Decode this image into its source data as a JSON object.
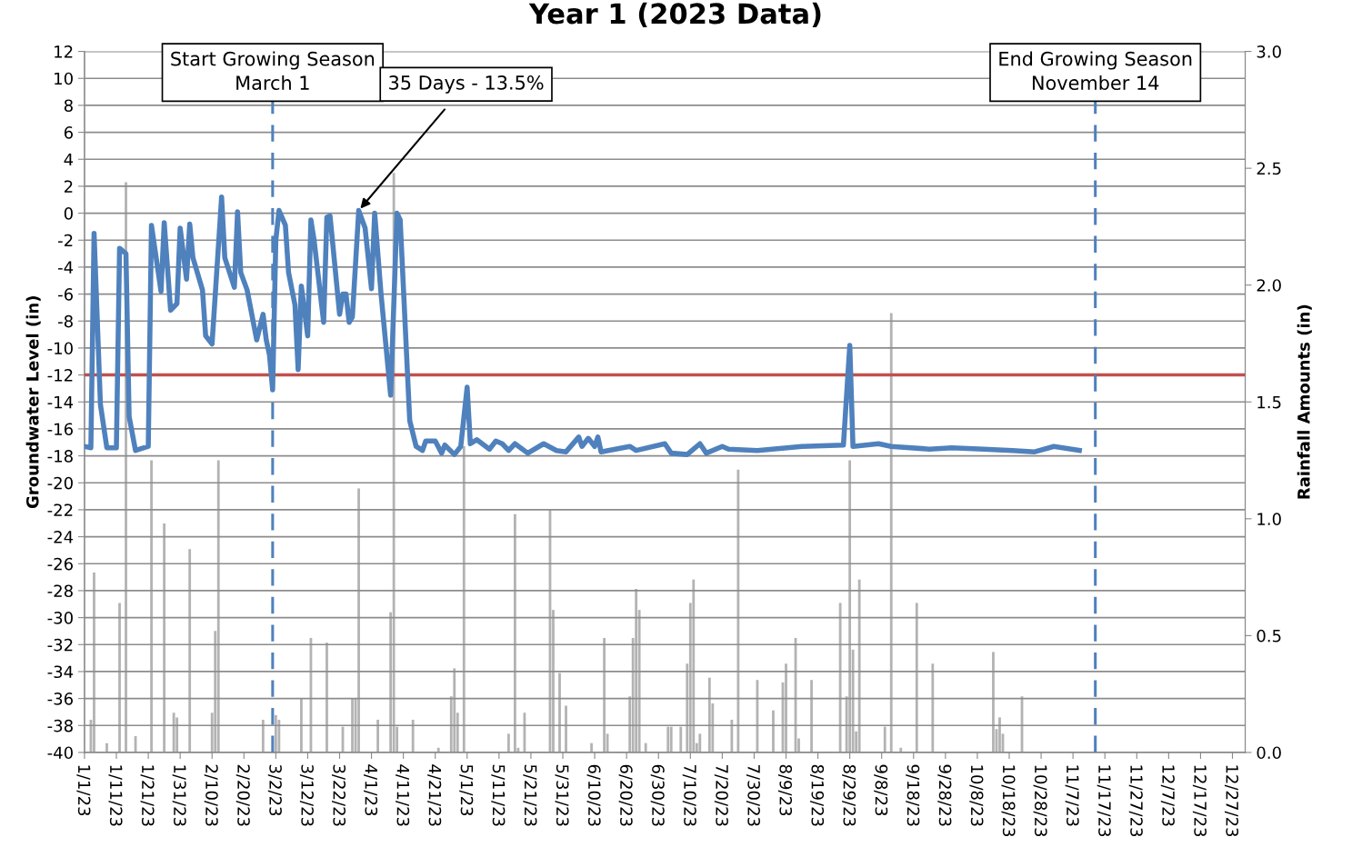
{
  "chart_data": {
    "type": "line",
    "title": "Year 1 (2023 Data)",
    "ylabel": "Groundwater Level (in)",
    "y2label": "Rainfall Amounts (in)",
    "series": [
      {
        "type": "bar",
        "axis": "y2",
        "color": "#b3b3b3",
        "x": [
          "2023-01-03",
          "2023-01-04",
          "2023-01-08",
          "2023-01-12",
          "2023-01-14",
          "2023-01-17",
          "2023-01-22",
          "2023-01-26",
          "2023-01-29",
          "2023-01-30",
          "2023-02-03",
          "2023-02-10",
          "2023-02-11",
          "2023-02-12",
          "2023-02-26",
          "2023-03-02",
          "2023-03-03",
          "2023-03-10",
          "2023-03-13",
          "2023-03-18",
          "2023-03-23",
          "2023-03-26",
          "2023-03-27",
          "2023-03-28",
          "2023-04-03",
          "2023-04-07",
          "2023-04-08",
          "2023-04-09",
          "2023-04-14",
          "2023-04-22",
          "2023-04-26",
          "2023-04-27",
          "2023-04-28",
          "2023-04-30",
          "2023-05-14",
          "2023-05-16",
          "2023-05-17",
          "2023-05-19",
          "2023-05-27",
          "2023-05-28",
          "2023-05-30",
          "2023-06-01",
          "2023-06-09",
          "2023-06-13",
          "2023-06-14",
          "2023-06-21",
          "2023-06-22",
          "2023-06-23",
          "2023-06-24",
          "2023-06-26",
          "2023-07-03",
          "2023-07-04",
          "2023-07-07",
          "2023-07-09",
          "2023-07-10",
          "2023-07-11",
          "2023-07-12",
          "2023-07-13",
          "2023-07-16",
          "2023-07-17",
          "2023-07-23",
          "2023-07-25",
          "2023-07-31",
          "2023-08-05",
          "2023-08-08",
          "2023-08-09",
          "2023-08-12",
          "2023-08-13",
          "2023-08-17",
          "2023-08-26",
          "2023-08-28",
          "2023-08-29",
          "2023-08-30",
          "2023-08-31",
          "2023-09-01",
          "2023-09-09",
          "2023-09-11",
          "2023-09-14",
          "2023-09-19",
          "2023-09-24",
          "2023-10-13",
          "2023-10-14",
          "2023-10-15",
          "2023-10-16",
          "2023-10-22"
        ],
        "values": [
          0.14,
          0.77,
          0.04,
          0.64,
          2.44,
          0.07,
          1.25,
          0.98,
          0.17,
          0.15,
          0.87,
          0.17,
          0.52,
          1.25,
          0.14,
          0.16,
          0.14,
          0.23,
          0.49,
          0.47,
          0.11,
          0.23,
          0.23,
          1.13,
          0.14,
          0.6,
          2.48,
          0.11,
          0.14,
          0.02,
          0.24,
          0.36,
          0.17,
          1.31,
          0.08,
          1.02,
          0.02,
          0.17,
          1.04,
          0.61,
          0.34,
          0.2,
          0.04,
          0.49,
          0.08,
          0.24,
          0.49,
          0.7,
          0.61,
          0.04,
          0.11,
          0.11,
          0.11,
          0.38,
          0.64,
          0.74,
          0.04,
          0.08,
          0.32,
          0.21,
          0.14,
          1.21,
          0.31,
          0.18,
          0.3,
          0.38,
          0.49,
          0.06,
          0.31,
          0.64,
          0.24,
          1.25,
          0.44,
          0.09,
          0.74,
          0.11,
          1.88,
          0.02,
          0.64,
          0.38,
          0.43,
          0.1,
          0.15,
          0.08,
          0.24
        ]
      },
      {
        "color": "#4f81bd",
        "x": [
          "2023-01-01",
          "2023-01-03",
          "2023-01-04",
          "2023-01-06",
          "2023-01-08",
          "2023-01-11",
          "2023-01-12",
          "2023-01-14",
          "2023-01-15",
          "2023-01-17",
          "2023-01-21",
          "2023-01-22",
          "2023-01-25",
          "2023-01-26",
          "2023-01-28",
          "2023-01-30",
          "2023-01-31",
          "2023-02-02",
          "2023-02-03",
          "2023-02-04",
          "2023-02-07",
          "2023-02-08",
          "2023-02-10",
          "2023-02-13",
          "2023-02-14",
          "2023-02-17",
          "2023-02-18",
          "2023-02-19",
          "2023-02-21",
          "2023-02-24",
          "2023-02-26",
          "2023-02-27",
          "2023-02-28",
          "2023-03-01",
          "2023-03-02",
          "2023-03-03",
          "2023-03-05",
          "2023-03-06",
          "2023-03-08",
          "2023-03-09",
          "2023-03-10",
          "2023-03-12",
          "2023-03-13",
          "2023-03-14",
          "2023-03-17",
          "2023-03-18",
          "2023-03-19",
          "2023-03-22",
          "2023-03-23",
          "2023-03-24",
          "2023-03-25",
          "2023-03-26",
          "2023-03-28",
          "2023-03-30",
          "2023-04-01",
          "2023-04-02",
          "2023-04-04",
          "2023-04-07",
          "2023-04-09",
          "2023-04-10",
          "2023-04-13",
          "2023-04-15",
          "2023-04-17",
          "2023-04-18",
          "2023-04-21",
          "2023-04-23",
          "2023-04-24",
          "2023-04-27",
          "2023-04-29",
          "2023-05-01",
          "2023-05-02",
          "2023-05-04",
          "2023-05-08",
          "2023-05-10",
          "2023-05-12",
          "2023-05-14",
          "2023-05-16",
          "2023-05-20",
          "2023-05-25",
          "2023-05-29",
          "2023-06-01",
          "2023-06-05",
          "2023-06-06",
          "2023-06-08",
          "2023-06-10",
          "2023-06-11",
          "2023-06-12",
          "2023-06-21",
          "2023-06-23",
          "2023-07-02",
          "2023-07-04",
          "2023-07-09",
          "2023-07-13",
          "2023-07-15",
          "2023-07-20",
          "2023-07-22",
          "2023-07-31",
          "2023-08-14",
          "2023-08-27",
          "2023-08-29",
          "2023-08-30",
          "2023-09-07",
          "2023-09-11",
          "2023-09-23",
          "2023-09-30",
          "2023-10-10",
          "2023-10-19",
          "2023-10-26",
          "2023-11-01",
          "2023-11-09"
        ],
        "values": [
          -17.3,
          -17.4,
          -1.5,
          -14.2,
          -17.4,
          -17.4,
          -2.6,
          -3.0,
          -15.1,
          -17.6,
          -17.3,
          -0.9,
          -5.8,
          -0.7,
          -7.2,
          -6.7,
          -1.1,
          -4.9,
          -0.8,
          -3.3,
          -5.7,
          -9.1,
          -9.7,
          1.2,
          -3.3,
          -5.5,
          0.1,
          -4.4,
          -5.7,
          -9.4,
          -7.5,
          -9.4,
          -10.5,
          -13.1,
          -2.0,
          0.2,
          -0.9,
          -4.4,
          -6.8,
          -11.6,
          -5.4,
          -9.1,
          -0.5,
          -2.0,
          -8.1,
          -0.3,
          -0.2,
          -7.5,
          -6.0,
          -6.0,
          -8.1,
          -7.7,
          0.2,
          -1.1,
          -5.6,
          0.0,
          -6.0,
          -13.5,
          0.0,
          -0.5,
          -15.4,
          -17.3,
          -17.6,
          -16.9,
          -16.9,
          -17.8,
          -17.2,
          -17.9,
          -17.3,
          -12.9,
          -17.1,
          -16.8,
          -17.5,
          -16.9,
          -17.1,
          -17.6,
          -17.1,
          -17.8,
          -17.1,
          -17.6,
          -17.7,
          -16.6,
          -17.3,
          -16.7,
          -17.3,
          -16.6,
          -17.7,
          -17.3,
          -17.6,
          -17.1,
          -17.8,
          -17.9,
          -17.1,
          -17.8,
          -17.3,
          -17.5,
          -17.6,
          -17.3,
          -17.2,
          -9.8,
          -17.3,
          -17.1,
          -17.3,
          -17.5,
          -17.4,
          -17.5,
          -17.6,
          -17.7,
          -17.3,
          -17.6
        ]
      }
    ],
    "xlim": [
      "2023-01-01",
      "2023-12-31"
    ],
    "xticks": [
      {
        "value": "2023-01-01",
        "label": "1/1/23"
      },
      {
        "value": "2023-01-11",
        "label": "1/11/23"
      },
      {
        "value": "2023-01-21",
        "label": "1/21/23"
      },
      {
        "value": "2023-01-31",
        "label": "1/31/23"
      },
      {
        "value": "2023-02-10",
        "label": "2/10/23"
      },
      {
        "value": "2023-02-20",
        "label": "2/20/23"
      },
      {
        "value": "2023-03-02",
        "label": "3/2/23"
      },
      {
        "value": "2023-03-12",
        "label": "3/12/23"
      },
      {
        "value": "2023-03-22",
        "label": "3/22/23"
      },
      {
        "value": "2023-04-01",
        "label": "4/1/23"
      },
      {
        "value": "2023-04-11",
        "label": "4/11/23"
      },
      {
        "value": "2023-04-21",
        "label": "4/21/23"
      },
      {
        "value": "2023-05-01",
        "label": "5/1/23"
      },
      {
        "value": "2023-05-11",
        "label": "5/11/23"
      },
      {
        "value": "2023-05-21",
        "label": "5/21/23"
      },
      {
        "value": "2023-05-31",
        "label": "5/31/23"
      },
      {
        "value": "2023-06-10",
        "label": "6/10/23"
      },
      {
        "value": "2023-06-20",
        "label": "6/20/23"
      },
      {
        "value": "2023-06-30",
        "label": "6/30/23"
      },
      {
        "value": "2023-07-10",
        "label": "7/10/23"
      },
      {
        "value": "2023-07-20",
        "label": "7/20/23"
      },
      {
        "value": "2023-07-30",
        "label": "7/30/23"
      },
      {
        "value": "2023-08-09",
        "label": "8/9/23"
      },
      {
        "value": "2023-08-19",
        "label": "8/19/23"
      },
      {
        "value": "2023-08-29",
        "label": "8/29/23"
      },
      {
        "value": "2023-09-08",
        "label": "9/8/23"
      },
      {
        "value": "2023-09-18",
        "label": "9/18/23"
      },
      {
        "value": "2023-09-28",
        "label": "9/28/23"
      },
      {
        "value": "2023-10-08",
        "label": "10/8/23"
      },
      {
        "value": "2023-10-18",
        "label": "10/18/23"
      },
      {
        "value": "2023-10-28",
        "label": "10/28/23"
      },
      {
        "value": "2023-11-07",
        "label": "11/7/23"
      },
      {
        "value": "2023-11-17",
        "label": "11/17/23"
      },
      {
        "value": "2023-11-27",
        "label": "11/27/23"
      },
      {
        "value": "2023-12-07",
        "label": "12/7/23"
      },
      {
        "value": "2023-12-17",
        "label": "12/17/23"
      },
      {
        "value": "2023-12-27",
        "label": "12/27/23"
      }
    ],
    "ylim": [
      -40,
      12
    ],
    "yticks": [
      -40,
      -38,
      -36,
      -34,
      -32,
      -30,
      -28,
      -26,
      -24,
      -22,
      -20,
      -18,
      -16,
      -14,
      -12,
      -10,
      -8,
      -6,
      -4,
      -2,
      0,
      2,
      4,
      6,
      8,
      10,
      12
    ],
    "y2lim": [
      0,
      3
    ],
    "y2ticks": [
      {
        "value": 0,
        "label": "0.0"
      },
      {
        "value": 0.5,
        "label": "0.5"
      },
      {
        "value": 1,
        "label": "1.0"
      },
      {
        "value": 1.5,
        "label": "1.5"
      },
      {
        "value": 2,
        "label": "2.0"
      },
      {
        "value": 2.5,
        "label": "2.5"
      },
      {
        "value": 3,
        "label": "3.0"
      }
    ],
    "grid": "y",
    "ref_lines": [
      {
        "axis": "y",
        "value": -12,
        "color": "#c0504d",
        "line_style": "solid"
      },
      {
        "axis": "x",
        "value": "2023-03-01",
        "label": "Start Growing Season\nMarch 1",
        "color": "#4f81bd",
        "line_style": "dashed"
      },
      {
        "axis": "x",
        "value": "2023-11-14",
        "label": "End Growing Season\nNovember 14",
        "color": "#4f81bd",
        "line_style": "dashed"
      }
    ],
    "annotations": [
      {
        "text": "35 Days - 13.5%",
        "x": "2023-03-28",
        "y": 0.2
      }
    ]
  }
}
